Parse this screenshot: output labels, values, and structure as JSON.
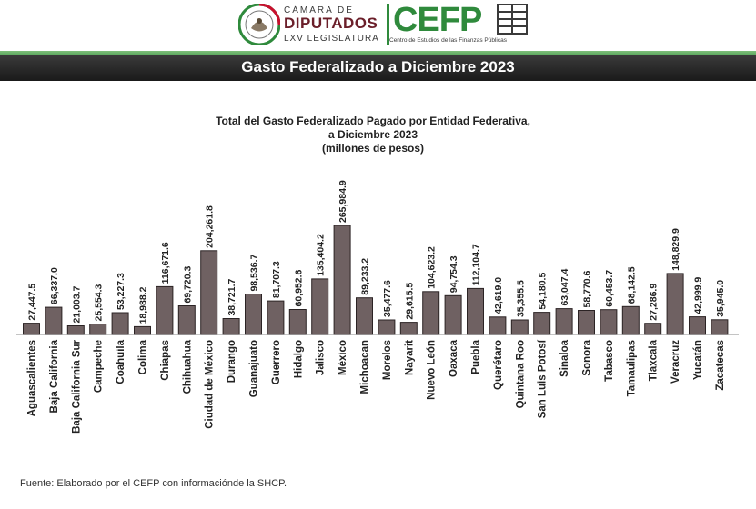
{
  "header": {
    "camara": "CÁMARA DE",
    "diputados": "DIPUTADOS",
    "legislatura": "LXV LEGISLATURA",
    "cefp": "CEFP",
    "cefp_sub": "Centro de Estudios de las Finanzas Públicas",
    "band_title": "Gasto Federalizado a Diciembre 2023"
  },
  "chart_data": {
    "type": "bar",
    "title_lines": [
      "Total del Gasto Federalizado Pagado por Entidad Federativa,",
      "a Diciembre 2023",
      "(millones de pesos)"
    ],
    "categories": [
      "Aguascalientes",
      "Baja California",
      "Baja California Sur",
      "Campeche",
      "Coahuila",
      "Colima",
      "Chiapas",
      "Chihuahua",
      "Ciudad de México",
      "Durango",
      "Guanajuato",
      "Guerrero",
      "Hidalgo",
      "Jalisco",
      "México",
      "Michoacan",
      "Morelos",
      "Nayarit",
      "Nuevo León",
      "Oaxaca",
      "Puebla",
      "Querétaro",
      "Quintana Roo",
      "San Luis Potosí",
      "Sinaloa",
      "Sonora",
      "Tabasco",
      "Tamaulipas",
      "Tlaxcala",
      "Veracruz",
      "Yucatán",
      "Zacatecas"
    ],
    "values": [
      27447.5,
      66337.0,
      21003.7,
      25554.3,
      53227.3,
      18988.2,
      116671.6,
      69720.3,
      204261.8,
      38721.7,
      98536.7,
      81707.3,
      60952.6,
      135404.2,
      265984.9,
      89233.2,
      35477.6,
      29615.5,
      104623.2,
      94754.3,
      112104.7,
      42619.0,
      35355.5,
      54180.5,
      63047.4,
      58770.6,
      60453.7,
      68142.5,
      27286.9,
      148829.9,
      42999.9,
      35945.0
    ],
    "labels": [
      "27,447.5",
      "66,337.0",
      "21,003.7",
      "25,554.3",
      "53,227.3",
      "18,988.2",
      "116,671.6",
      "69,720.3",
      "204,261.8",
      "38,721.7",
      "98,536.7",
      "81,707.3",
      "60,952.6",
      "135,404.2",
      "265,984.9",
      "89,233.2",
      "35,477.6",
      "29,615.5",
      "104,623.2",
      "94,754.3",
      "112,104.7",
      "42,619.0",
      "35,355.5",
      "54,180.5",
      "63,047.4",
      "58,770.6",
      "60,453.7",
      "68,142.5",
      "27,286.9",
      "148,829.9",
      "42,999.9",
      "35,945.0"
    ],
    "bar_color": "#6f6162",
    "bar_edge": "#2b2324",
    "grid": false,
    "legend": "none"
  },
  "source": "Fuente: Elaborado por el CEFP con informaciónde la SHCP."
}
